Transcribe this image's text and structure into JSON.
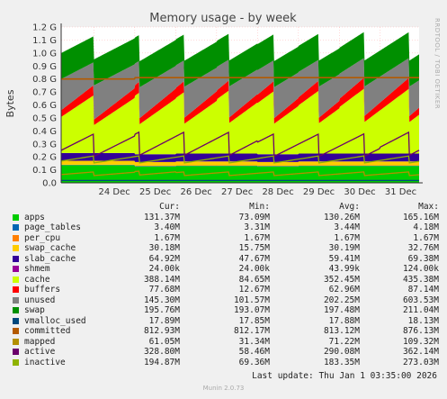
{
  "chart_data": {
    "type": "area",
    "title": "Memory usage - by week",
    "ylabel": "Bytes",
    "side_label": "RRDTOOL / TOBI OETIKER",
    "ylim": [
      0,
      1.2
    ],
    "yticks": [
      "0.0",
      "0.1 G",
      "0.2 G",
      "0.3 G",
      "0.4 G",
      "0.5 G",
      "0.6 G",
      "0.7 G",
      "0.8 G",
      "0.9 G",
      "1.0 G",
      "1.1 G",
      "1.2 G"
    ],
    "xticks": [
      "24 Dec",
      "25 Dec",
      "26 Dec",
      "27 Dec",
      "28 Dec",
      "29 Dec",
      "30 Dec",
      "31 Dec"
    ],
    "xrange_days": [
      23.2,
      31.95
    ],
    "tick_days": [
      24,
      25,
      26,
      27,
      28,
      29,
      30,
      31
    ],
    "grid": true,
    "colors": {
      "apps": "#00cc00",
      "page_tables": "#0066b3",
      "per_cpu": "#ff8000",
      "swap_cache": "#ffcc00",
      "slab_cache": "#330099",
      "shmem": "#990099",
      "cache": "#ccff00",
      "buffers": "#ff0000",
      "unused": "#808080",
      "swap": "#008f00",
      "vmalloc_used": "#00487d",
      "committed": "#b35a00",
      "mapped": "#b38f00",
      "active": "#6b006b",
      "inactive": "#8fb300"
    },
    "stack_series": [
      {
        "key": "apps",
        "values": [
          0.135,
          0.125,
          0.13,
          0.13,
          0.125,
          0.13,
          0.13,
          0.13
        ]
      },
      {
        "key": "page_tables",
        "values": [
          0.003,
          0.003,
          0.003,
          0.003,
          0.003,
          0.003,
          0.003,
          0.003
        ]
      },
      {
        "key": "per_cpu",
        "values": [
          0.002,
          0.002,
          0.002,
          0.002,
          0.002,
          0.002,
          0.002,
          0.002
        ]
      },
      {
        "key": "swap_cache",
        "values": [
          0.03,
          0.03,
          0.03,
          0.03,
          0.03,
          0.03,
          0.03,
          0.03
        ]
      },
      {
        "key": "slab_cache",
        "values": [
          0.06,
          0.06,
          0.06,
          0.06,
          0.06,
          0.06,
          0.06,
          0.06
        ]
      },
      {
        "key": "shmem",
        "values": [
          0.0,
          0.0,
          0.0,
          0.0,
          0.0,
          0.0,
          0.0,
          0.0
        ]
      },
      {
        "key": "cache",
        "values": [
          0.33,
          0.35,
          0.35,
          0.36,
          0.36,
          0.36,
          0.37,
          0.37
        ]
      },
      {
        "key": "buffers",
        "values": [
          0.06,
          0.065,
          0.065,
          0.06,
          0.06,
          0.06,
          0.065,
          0.065
        ]
      },
      {
        "key": "unused",
        "values": [
          0.22,
          0.2,
          0.2,
          0.2,
          0.2,
          0.2,
          0.19,
          0.19
        ]
      },
      {
        "key": "swap",
        "values": [
          0.2,
          0.2,
          0.2,
          0.2,
          0.2,
          0.2,
          0.2,
          0.2
        ]
      }
    ],
    "line_series": [
      {
        "key": "committed",
        "values": [
          0.8,
          0.81,
          0.81,
          0.81,
          0.81,
          0.81,
          0.81,
          0.81
        ]
      },
      {
        "key": "active",
        "values": [
          0.29,
          0.3,
          0.3,
          0.3,
          0.29,
          0.29,
          0.29,
          0.3
        ]
      },
      {
        "key": "inactive",
        "values": [
          0.18,
          0.18,
          0.18,
          0.18,
          0.18,
          0.18,
          0.18,
          0.18
        ]
      },
      {
        "key": "mapped",
        "values": [
          0.07,
          0.075,
          0.07,
          0.07,
          0.07,
          0.07,
          0.07,
          0.07
        ]
      },
      {
        "key": "vmalloc_used",
        "values": [
          0.018,
          0.018,
          0.018,
          0.018,
          0.018,
          0.018,
          0.018,
          0.018
        ]
      }
    ]
  },
  "legend": {
    "headers": {
      "cur": "Cur:",
      "min": "Min:",
      "avg": "Avg:",
      "max": "Max:"
    },
    "rows": [
      {
        "key": "apps",
        "name": "apps",
        "cur": "131.37M",
        "min": "73.09M",
        "avg": "130.26M",
        "max": "165.16M"
      },
      {
        "key": "page_tables",
        "name": "page_tables",
        "cur": "3.40M",
        "min": "3.31M",
        "avg": "3.44M",
        "max": "4.18M"
      },
      {
        "key": "per_cpu",
        "name": "per_cpu",
        "cur": "1.67M",
        "min": "1.67M",
        "avg": "1.67M",
        "max": "1.67M"
      },
      {
        "key": "swap_cache",
        "name": "swap_cache",
        "cur": "30.18M",
        "min": "15.75M",
        "avg": "30.19M",
        "max": "32.76M"
      },
      {
        "key": "slab_cache",
        "name": "slab_cache",
        "cur": "64.92M",
        "min": "47.67M",
        "avg": "59.41M",
        "max": "69.38M"
      },
      {
        "key": "shmem",
        "name": "shmem",
        "cur": "24.00k",
        "min": "24.00k",
        "avg": "43.99k",
        "max": "124.00k"
      },
      {
        "key": "cache",
        "name": "cache",
        "cur": "388.14M",
        "min": "84.65M",
        "avg": "352.45M",
        "max": "435.38M"
      },
      {
        "key": "buffers",
        "name": "buffers",
        "cur": "77.68M",
        "min": "12.67M",
        "avg": "62.96M",
        "max": "87.14M"
      },
      {
        "key": "unused",
        "name": "unused",
        "cur": "145.30M",
        "min": "101.57M",
        "avg": "202.25M",
        "max": "603.53M"
      },
      {
        "key": "swap",
        "name": "swap",
        "cur": "195.76M",
        "min": "193.07M",
        "avg": "197.48M",
        "max": "211.04M"
      },
      {
        "key": "vmalloc_used",
        "name": "vmalloc_used",
        "cur": "17.89M",
        "min": "17.85M",
        "avg": "17.88M",
        "max": "18.13M"
      },
      {
        "key": "committed",
        "name": "committed",
        "cur": "812.93M",
        "min": "812.17M",
        "avg": "813.12M",
        "max": "876.13M"
      },
      {
        "key": "mapped",
        "name": "mapped",
        "cur": "61.05M",
        "min": "31.34M",
        "avg": "71.22M",
        "max": "109.32M"
      },
      {
        "key": "active",
        "name": "active",
        "cur": "328.80M",
        "min": "58.46M",
        "avg": "290.08M",
        "max": "362.14M"
      },
      {
        "key": "inactive",
        "name": "inactive",
        "cur": "194.87M",
        "min": "69.36M",
        "avg": "183.35M",
        "max": "273.03M"
      }
    ]
  },
  "last_update": "Last update: Thu Jan  1 03:35:00 2026",
  "footer": "Munin 2.0.73"
}
